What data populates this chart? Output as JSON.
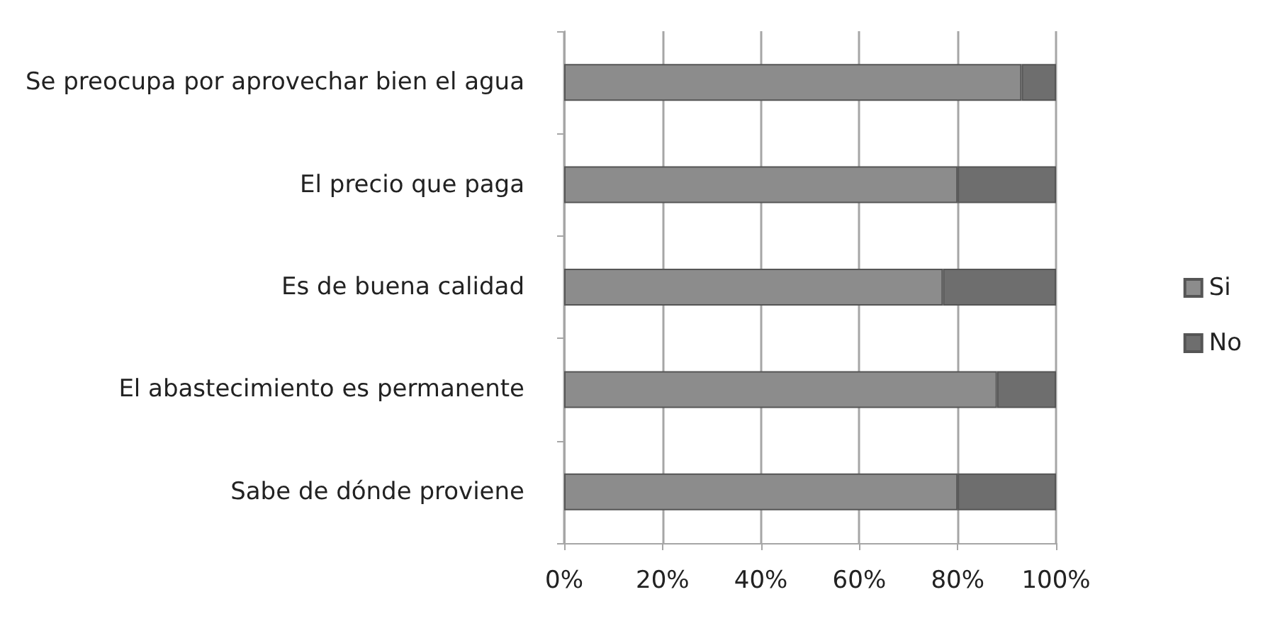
{
  "chart_data": {
    "type": "bar",
    "orientation": "horizontal",
    "stacked": true,
    "categories": [
      "Se preocupa por aprovechar bien el agua",
      "El precio que paga",
      "Es de buena calidad",
      "El abastecimiento es permanente",
      "Sabe de dónde proviene"
    ],
    "series": [
      {
        "name": "Si",
        "color": "#8c8c8c",
        "values": [
          93,
          80,
          77,
          88,
          80
        ]
      },
      {
        "name": "No",
        "color": "#6e6e6e",
        "values": [
          7,
          20,
          23,
          12,
          20
        ]
      }
    ],
    "xlim": [
      0,
      100
    ],
    "xticks": [
      {
        "value": 0,
        "label": "0%"
      },
      {
        "value": 20,
        "label": "20%"
      },
      {
        "value": 40,
        "label": "40%"
      },
      {
        "value": 60,
        "label": "60%"
      },
      {
        "value": 80,
        "label": "80%"
      },
      {
        "value": 100,
        "label": "100%"
      }
    ],
    "grid": "x",
    "legend": "right"
  }
}
